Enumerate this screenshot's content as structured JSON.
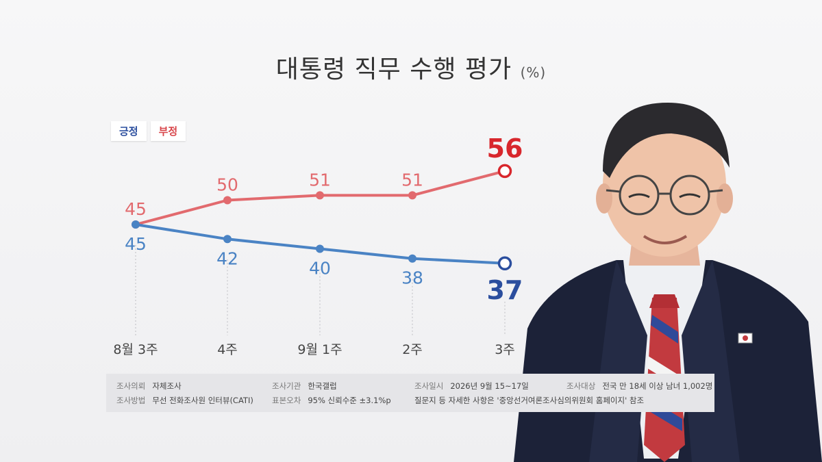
{
  "title": "대통령 직무 수행 평가",
  "title_unit": "(%)",
  "legend": [
    {
      "label": "긍정",
      "color": "#2b4e9e"
    },
    {
      "label": "부정",
      "color": "#d8454a"
    }
  ],
  "chart_data": {
    "type": "line",
    "categories": [
      "8월 3주",
      "4주",
      "9월 1주",
      "2주",
      "3주"
    ],
    "series": [
      {
        "name": "부정",
        "values": [
          45,
          50,
          51,
          51,
          56
        ],
        "color": "#e26a6e",
        "highlight_color": "#d8262c"
      },
      {
        "name": "긍정",
        "values": [
          45,
          42,
          40,
          38,
          37
        ],
        "color": "#4a83c4",
        "highlight_color": "#2b4e9e"
      }
    ],
    "grid": false,
    "legend_position": "top-left"
  },
  "footer": {
    "row1": [
      {
        "key": "조사의뢰",
        "value": "자체조사"
      },
      {
        "key": "조사기관",
        "value": "한국갤럽"
      },
      {
        "key": "조사일시",
        "value": "2026년 9월 15~17일"
      },
      {
        "key": "조사대상",
        "value": "전국 만 18세 이상 남녀 1,002명"
      }
    ],
    "row2": [
      {
        "key": "조사방법",
        "value": "무선 전화조사원 인터뷰(CATI)"
      },
      {
        "key": "표본오차",
        "value": "95% 신뢰수준 ±3.1%p"
      },
      {
        "key": "",
        "value": "질문지 등 자세한 사항은 '중앙선거여론조사심의위원회 홈페이지' 참조"
      }
    ]
  },
  "photo": {
    "icon": "person-photo"
  }
}
